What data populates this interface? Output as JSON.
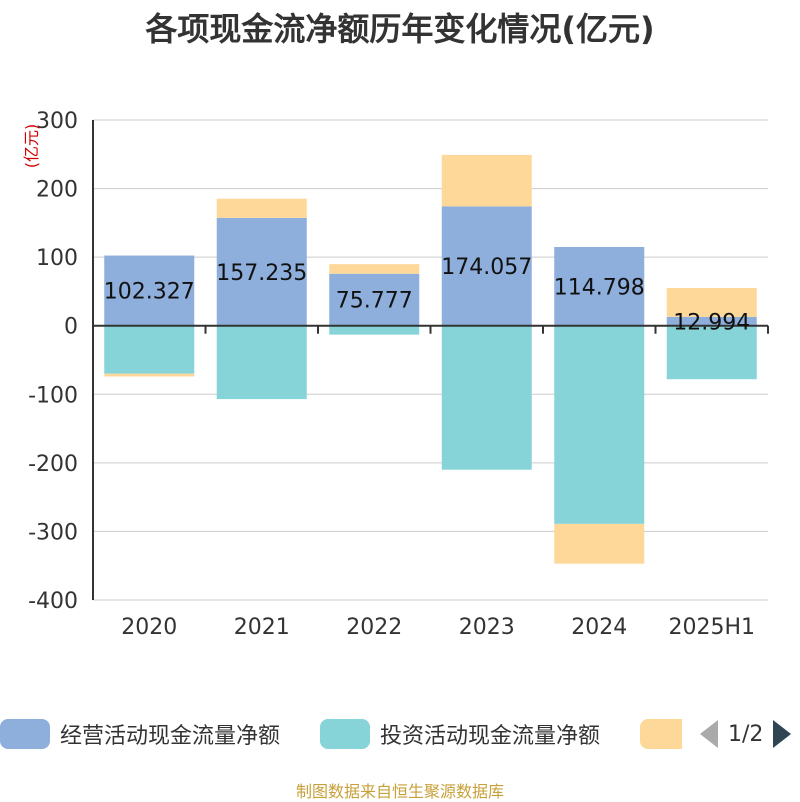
{
  "title": "各项现金流净额历年变化情况(亿元)",
  "footer": "制图数据来自恒生聚源数据库",
  "pager": {
    "text": "1/2"
  },
  "legend": [
    {
      "label": "经营活动现金流量净额",
      "color": "#8eaedb"
    },
    {
      "label": "投资活动现金流量净额",
      "color": "#86d3d8"
    },
    {
      "label": "",
      "color": "#fdd898"
    }
  ],
  "chart_data": {
    "type": "bar",
    "stacked": true,
    "ylabel": "(亿元)",
    "ylim": [
      -400,
      300
    ],
    "yticks": [
      300,
      200,
      100,
      0,
      -100,
      -200,
      -300,
      -400
    ],
    "grid": true,
    "legend_position": "bottom",
    "categories": [
      "2020",
      "2021",
      "2022",
      "2023",
      "2024",
      "2025H1"
    ],
    "series": [
      {
        "name": "经营活动现金流量净额",
        "color": "#8eaedb",
        "values": [
          102.327,
          157.235,
          75.777,
          174.057,
          114.798,
          12.994
        ],
        "labels": [
          "102.327",
          "157.235",
          "75.777",
          "174.057",
          "114.798",
          "12.994"
        ]
      },
      {
        "name": "投资活动现金流量净额",
        "color": "#86d3d8",
        "values": [
          -70,
          -107,
          -13,
          -210,
          -289,
          -78
        ]
      },
      {
        "name": "",
        "color": "#fdd898",
        "values": [
          -4,
          28,
          14,
          75,
          -58,
          42
        ]
      }
    ]
  }
}
